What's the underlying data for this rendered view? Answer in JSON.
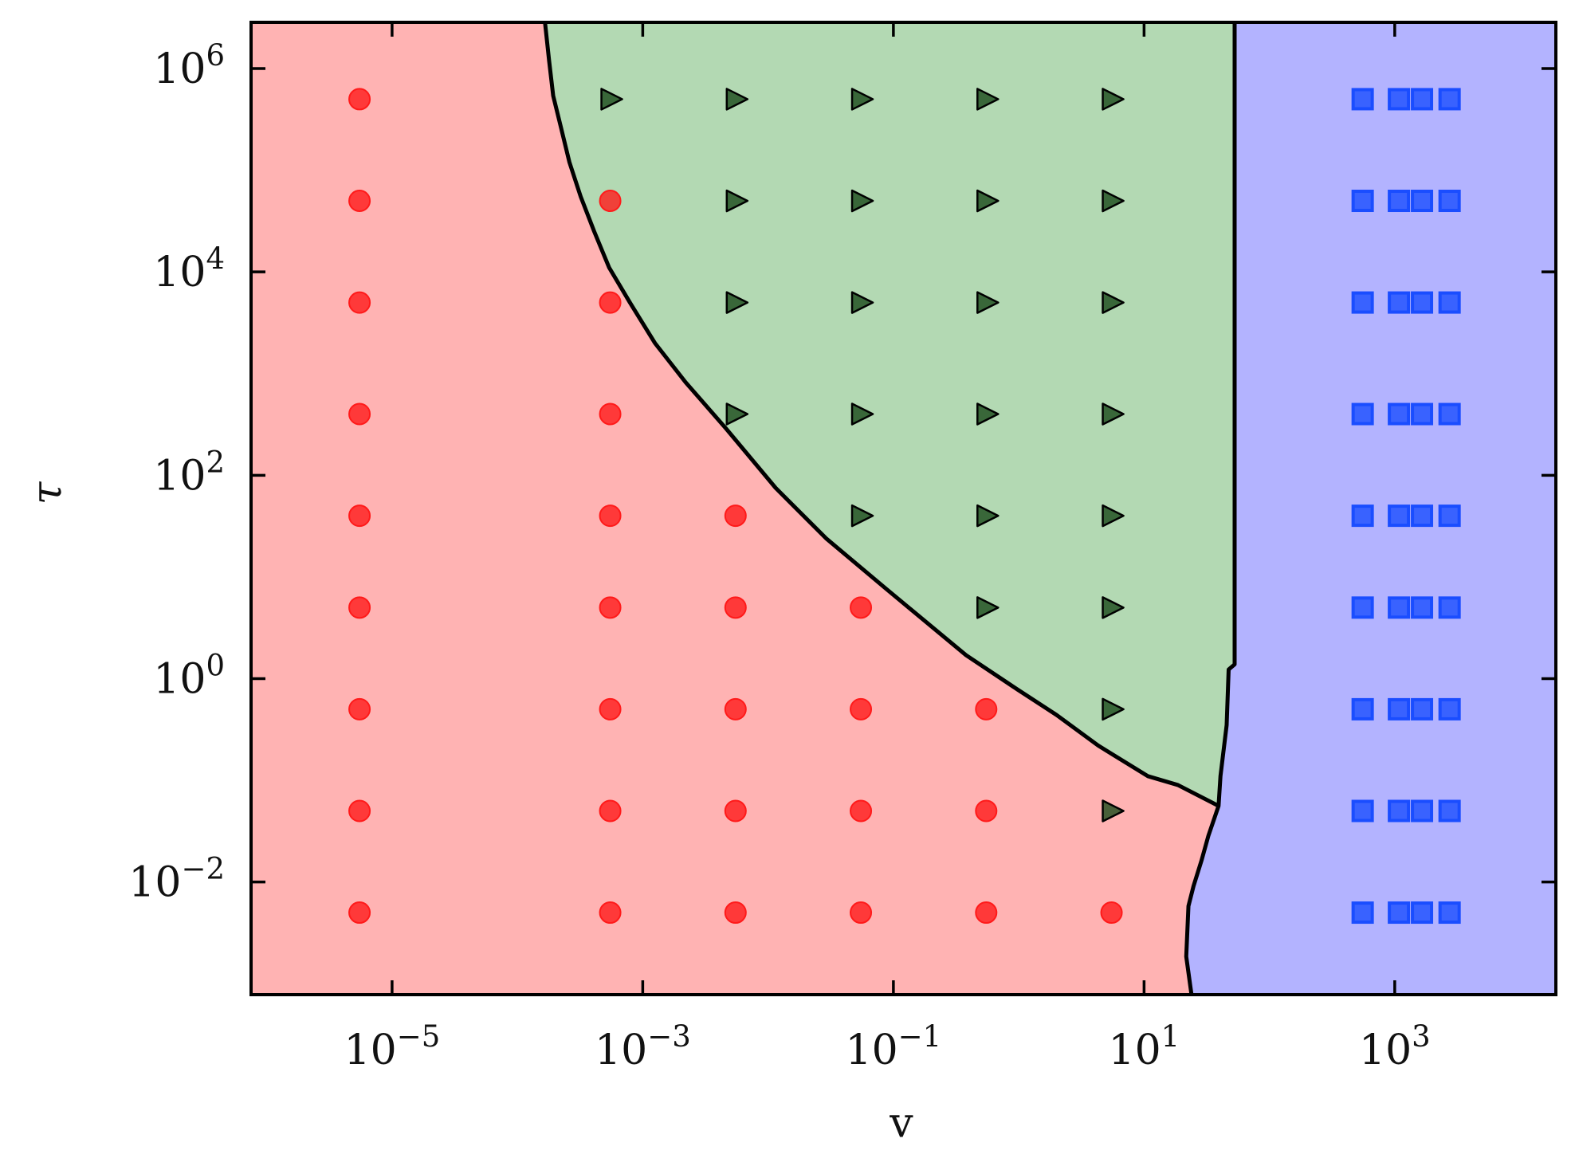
{
  "chart_data": {
    "type": "scatter",
    "xlabel": "v",
    "ylabel": "τ",
    "xscale": "log",
    "yscale": "log",
    "xlim": [
      7.5e-07,
      19300
    ],
    "ylim": [
      0.00078,
      2850000.0
    ],
    "xticks": [
      {
        "value": 1e-05,
        "label": [
          "10",
          "−5"
        ]
      },
      {
        "value": 0.001,
        "label": [
          "10",
          "−3"
        ]
      },
      {
        "value": 0.1,
        "label": [
          "10",
          "−1"
        ]
      },
      {
        "value": 10,
        "label": [
          "10",
          "1"
        ]
      },
      {
        "value": 1000,
        "label": [
          "10",
          "3"
        ]
      }
    ],
    "yticks": [
      {
        "value": 0.01,
        "label": [
          "10",
          "−2"
        ]
      },
      {
        "value": 1,
        "label": [
          "10",
          "0"
        ]
      },
      {
        "value": 100,
        "label": [
          "10",
          "2"
        ]
      },
      {
        "value": 10000,
        "label": [
          "10",
          "4"
        ]
      },
      {
        "value": 1000000,
        "label": [
          "10",
          "6"
        ]
      }
    ],
    "region_colors": [
      "#ffb3b3",
      "#b3d9b3",
      "#b3b3ff"
    ],
    "boundaries": [
      {
        "x": [
          0.000166,
          0.000179,
          0.000193,
          0.00022,
          0.00026,
          0.00032,
          0.00041,
          0.00054,
          0.00079,
          0.00125,
          0.0022,
          0.0046,
          0.0115,
          0.029,
          0.088,
          0.38,
          0.98,
          2.0,
          4.3,
          10.7,
          18.6,
          39.3
        ],
        "y": [
          2850000.0,
          1200000.0,
          540000.0,
          280000.0,
          120000.0,
          55000.0,
          25000.0,
          11000.0,
          5000,
          2000,
          820,
          290,
          75,
          24,
          7.6,
          1.7,
          0.78,
          0.44,
          0.22,
          0.11,
          0.09,
          0.056
        ]
      },
      {
        "x": [
          52.8,
          52.8,
          47.3,
          45.6,
          40.7,
          39.3,
          32.6,
          28.7,
          24.8,
          22.6,
          21.7,
          23.9
        ],
        "y": [
          2850000.0,
          1.38,
          1.23,
          0.35,
          0.11,
          0.056,
          0.0285,
          0.0162,
          0.0091,
          0.0058,
          0.00185,
          0.00078
        ]
      }
    ],
    "series": [
      {
        "marker": "circle",
        "color": "#ff1a1a",
        "x": [
          5.5e-06,
          5.5e-06,
          5.5e-06,
          5.5e-06,
          5.5e-06,
          5.5e-06,
          5.5e-06,
          5.5e-06,
          5.5e-06,
          0.00055,
          0.00055,
          0.00055,
          0.00055,
          0.00055,
          0.00055,
          0.00055,
          0.00055,
          0.0055,
          0.0055,
          0.0055,
          0.0055,
          0.0055,
          0.055,
          0.055,
          0.055,
          0.055,
          0.55,
          0.55,
          0.55,
          5.5
        ],
        "values": [
          500000.0,
          50000.0,
          5000,
          400,
          40,
          5,
          0.5,
          0.05,
          0.005,
          50000.0,
          5000,
          400,
          40,
          5,
          0.5,
          0.05,
          0.005,
          40,
          5,
          0.5,
          0.05,
          0.005,
          5,
          0.5,
          0.05,
          0.005,
          0.5,
          0.05,
          0.005,
          0.005
        ]
      },
      {
        "marker": "triangle",
        "color": "#1a4a1a",
        "x": [
          0.00055,
          0.0055,
          0.0055,
          0.0055,
          0.0055,
          0.055,
          0.055,
          0.055,
          0.055,
          0.055,
          0.55,
          0.55,
          0.55,
          0.55,
          0.55,
          0.55,
          5.5,
          5.5,
          5.5,
          5.5,
          5.5,
          5.5,
          5.5,
          5.5
        ],
        "values": [
          500000.0,
          500000.0,
          50000.0,
          5000,
          400,
          500000.0,
          50000.0,
          5000,
          400,
          40,
          500000.0,
          50000.0,
          5000,
          400,
          40,
          5,
          500000.0,
          50000.0,
          5000,
          400,
          40,
          5,
          0.5,
          0.05
        ]
      },
      {
        "marker": "square",
        "color": "#1a4dff",
        "x": [
          555,
          555,
          555,
          555,
          555,
          555,
          555,
          555,
          555,
          1080,
          1080,
          1080,
          1080,
          1080,
          1080,
          1080,
          1080,
          1080,
          1650,
          1650,
          1650,
          1650,
          1650,
          1650,
          1650,
          1650,
          1650,
          2740,
          2740,
          2740,
          2740,
          2740,
          2740,
          2740,
          2740,
          2740
        ],
        "values": [
          500000.0,
          50000.0,
          5000,
          400,
          40,
          5,
          0.5,
          0.05,
          0.005,
          500000.0,
          50000.0,
          5000,
          400,
          40,
          5,
          0.5,
          0.05,
          0.005,
          500000.0,
          50000.0,
          5000,
          400,
          40,
          5,
          0.5,
          0.05,
          0.005,
          500000.0,
          50000.0,
          5000,
          400,
          40,
          5,
          0.5,
          0.05,
          0.005
        ]
      }
    ]
  }
}
